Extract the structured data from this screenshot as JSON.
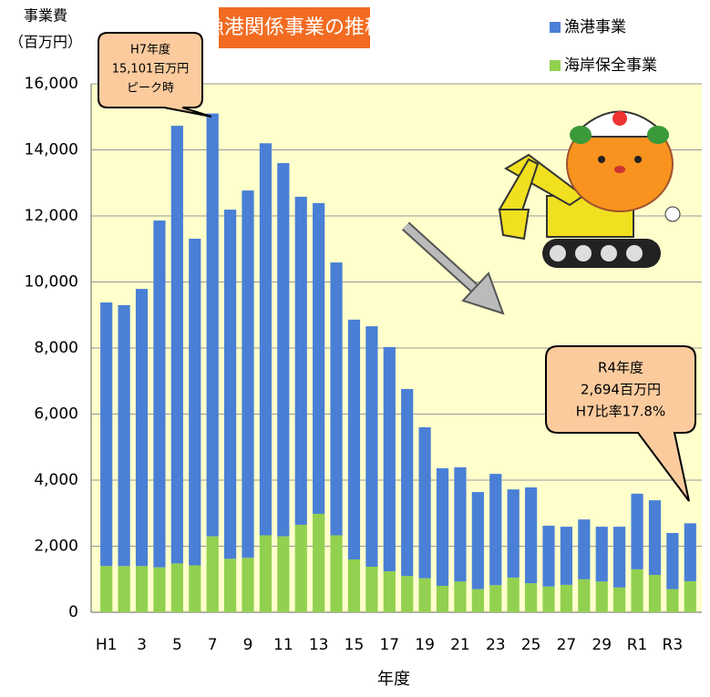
{
  "chart_data": {
    "type": "stacked_bar",
    "title": "漁港関係事業の推移",
    "y_label": [
      "事業費",
      "（百万円）"
    ],
    "x_label": "年度",
    "categories": [
      "H1",
      null,
      "3",
      null,
      "5",
      null,
      "7",
      null,
      "9",
      null,
      "11",
      null,
      "13",
      null,
      "15",
      null,
      "17",
      null,
      "19",
      null,
      "21",
      null,
      "23",
      null,
      "25",
      null,
      "27",
      null,
      "29",
      null,
      "R1",
      null,
      "R3",
      null
    ],
    "series": [
      {
        "name": "漁港事業",
        "color": "#4a7fd6",
        "values": [
          7980,
          7900,
          8390,
          10500,
          13250,
          9890,
          12801,
          10570,
          11120,
          11870,
          11300,
          9930,
          9410,
          8260,
          7260,
          7280,
          6790,
          5660,
          4570,
          3560,
          3460,
          2940,
          3370,
          2670,
          2900,
          1840,
          1760,
          1810,
          1660,
          1840,
          2290,
          2260,
          1700,
          1754
        ]
      },
      {
        "name": "海岸保全事業",
        "color": "#92d050",
        "values": [
          1400,
          1400,
          1400,
          1360,
          1480,
          1420,
          2300,
          1620,
          1650,
          2330,
          2300,
          2650,
          2980,
          2330,
          1600,
          1380,
          1240,
          1100,
          1030,
          800,
          930,
          700,
          820,
          1050,
          880,
          780,
          830,
          1000,
          930,
          750,
          1300,
          1130,
          700,
          940
        ]
      }
    ],
    "ylim": [
      0,
      16000
    ],
    "yticks": [
      0,
      {
        "value": 2000,
        "label": "2,000"
      },
      {
        "value": 4000,
        "label": "4,000"
      },
      {
        "value": 6000,
        "label": "6,000"
      },
      {
        "value": 8000,
        "label": "8,000"
      },
      {
        "value": 10000,
        "label": "10,000"
      },
      {
        "value": 12000,
        "label": "12,000"
      },
      {
        "value": 14000,
        "label": "14,000"
      },
      {
        "value": 16000,
        "label": "16,000"
      }
    ],
    "grid": true,
    "annotations": [
      {
        "lines": [
          "H7年度",
          "15,101百万円",
          "ピーク時"
        ]
      },
      {
        "lines": [
          "R4年度",
          "2,694百万円",
          "H7比率17.8%"
        ]
      }
    ]
  }
}
